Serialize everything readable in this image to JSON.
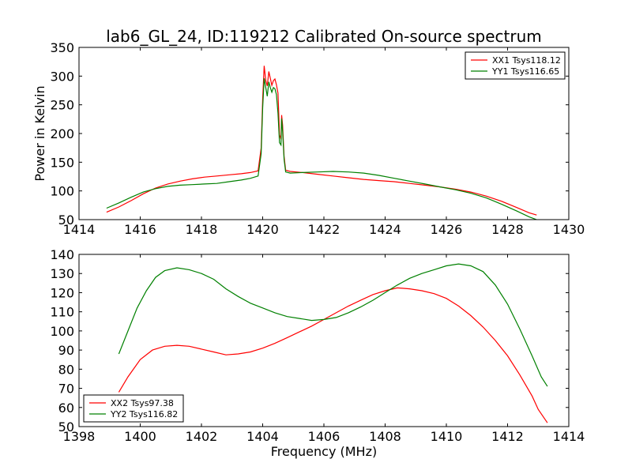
{
  "figure": {
    "title": "lab6_GL_24, ID:119212 Calibrated On-source spectrum"
  },
  "chart_data": [
    {
      "type": "line",
      "ylabel": "Power in Kelvin",
      "xlabel": "",
      "xlim": [
        1414,
        1430
      ],
      "ylim": [
        50,
        350
      ],
      "xticks": [
        "1414",
        "1416",
        "1418",
        "1420",
        "1422",
        "1424",
        "1426",
        "1428",
        "1430"
      ],
      "yticks": [
        "50",
        "100",
        "150",
        "200",
        "250",
        "300",
        "350"
      ],
      "legend_position": "top-right",
      "series": [
        {
          "name": "XX1 Tsys118.12",
          "color": "#ff0000",
          "points": [
            [
              1414.9,
              63
            ],
            [
              1415.3,
              72
            ],
            [
              1415.7,
              83
            ],
            [
              1416.1,
              95
            ],
            [
              1416.5,
              105
            ],
            [
              1416.9,
              112
            ],
            [
              1417.3,
              117
            ],
            [
              1417.7,
              121
            ],
            [
              1418.1,
              124
            ],
            [
              1418.5,
              126
            ],
            [
              1418.9,
              128
            ],
            [
              1419.3,
              130
            ],
            [
              1419.6,
              132
            ],
            [
              1419.85,
              135
            ],
            [
              1419.95,
              175
            ],
            [
              1420.0,
              260
            ],
            [
              1420.05,
              318
            ],
            [
              1420.1,
              292
            ],
            [
              1420.15,
              283
            ],
            [
              1420.2,
              308
            ],
            [
              1420.25,
              296
            ],
            [
              1420.3,
              284
            ],
            [
              1420.35,
              292
            ],
            [
              1420.4,
              295
            ],
            [
              1420.45,
              285
            ],
            [
              1420.5,
              270
            ],
            [
              1420.55,
              198
            ],
            [
              1420.6,
              190
            ],
            [
              1420.62,
              232
            ],
            [
              1420.65,
              215
            ],
            [
              1420.7,
              160
            ],
            [
              1420.75,
              136
            ],
            [
              1420.9,
              134
            ],
            [
              1421.3,
              132
            ],
            [
              1421.8,
              129
            ],
            [
              1422.3,
              126
            ],
            [
              1422.8,
              123
            ],
            [
              1423.3,
              120
            ],
            [
              1423.8,
              118
            ],
            [
              1424.3,
              116
            ],
            [
              1424.8,
              113
            ],
            [
              1425.3,
              110
            ],
            [
              1425.8,
              107
            ],
            [
              1426.3,
              103
            ],
            [
              1426.8,
              98
            ],
            [
              1427.3,
              91
            ],
            [
              1427.8,
              82
            ],
            [
              1428.3,
              71
            ],
            [
              1428.7,
              62
            ],
            [
              1428.95,
              58
            ]
          ]
        },
        {
          "name": "YY1 Tsys116.65",
          "color": "#008000",
          "points": [
            [
              1414.9,
              70
            ],
            [
              1415.3,
              79
            ],
            [
              1415.7,
              89
            ],
            [
              1416.1,
              98
            ],
            [
              1416.5,
              104
            ],
            [
              1416.9,
              108
            ],
            [
              1417.3,
              110
            ],
            [
              1417.7,
              111
            ],
            [
              1418.1,
              112
            ],
            [
              1418.5,
              113
            ],
            [
              1418.9,
              116
            ],
            [
              1419.3,
              119
            ],
            [
              1419.6,
              122
            ],
            [
              1419.85,
              126
            ],
            [
              1419.95,
              165
            ],
            [
              1420.0,
              245
            ],
            [
              1420.05,
              296
            ],
            [
              1420.1,
              280
            ],
            [
              1420.15,
              265
            ],
            [
              1420.2,
              290
            ],
            [
              1420.25,
              280
            ],
            [
              1420.3,
              272
            ],
            [
              1420.35,
              280
            ],
            [
              1420.4,
              278
            ],
            [
              1420.45,
              268
            ],
            [
              1420.5,
              235
            ],
            [
              1420.55,
              184
            ],
            [
              1420.6,
              180
            ],
            [
              1420.62,
              226
            ],
            [
              1420.65,
              205
            ],
            [
              1420.7,
              155
            ],
            [
              1420.75,
              133
            ],
            [
              1420.9,
              131
            ],
            [
              1421.3,
              132
            ],
            [
              1421.8,
              133
            ],
            [
              1422.3,
              134
            ],
            [
              1422.8,
              133
            ],
            [
              1423.3,
              131
            ],
            [
              1423.8,
              127
            ],
            [
              1424.3,
              122
            ],
            [
              1424.8,
              117
            ],
            [
              1425.3,
              112
            ],
            [
              1425.8,
              107
            ],
            [
              1426.3,
              102
            ],
            [
              1426.8,
              96
            ],
            [
              1427.3,
              88
            ],
            [
              1427.8,
              77
            ],
            [
              1428.3,
              65
            ],
            [
              1428.7,
              55
            ],
            [
              1428.95,
              50
            ]
          ]
        }
      ]
    },
    {
      "type": "line",
      "ylabel": "",
      "xlabel": "Frequency (MHz)",
      "xlim": [
        1398,
        1414
      ],
      "ylim": [
        50,
        140
      ],
      "xticks": [
        "1398",
        "1400",
        "1402",
        "1404",
        "1406",
        "1408",
        "1410",
        "1412",
        "1414"
      ],
      "yticks": [
        "50",
        "60",
        "70",
        "80",
        "90",
        "100",
        "110",
        "120",
        "130",
        "140"
      ],
      "legend_position": "bottom-left",
      "series": [
        {
          "name": "XX2 Tsys97.38",
          "color": "#ff0000",
          "points": [
            [
              1399.3,
              68
            ],
            [
              1399.6,
              76
            ],
            [
              1400.0,
              85
            ],
            [
              1400.4,
              90
            ],
            [
              1400.8,
              92
            ],
            [
              1401.2,
              92.5
            ],
            [
              1401.6,
              92
            ],
            [
              1402.0,
              90.5
            ],
            [
              1402.4,
              89
            ],
            [
              1402.8,
              87.5
            ],
            [
              1403.2,
              88
            ],
            [
              1403.6,
              89
            ],
            [
              1404.0,
              91
            ],
            [
              1404.4,
              93.5
            ],
            [
              1404.8,
              96.5
            ],
            [
              1405.2,
              99.5
            ],
            [
              1405.6,
              102.5
            ],
            [
              1406.0,
              106
            ],
            [
              1406.4,
              109.5
            ],
            [
              1406.8,
              113
            ],
            [
              1407.2,
              116
            ],
            [
              1407.6,
              119
            ],
            [
              1408.0,
              121
            ],
            [
              1408.4,
              122.5
            ],
            [
              1408.8,
              122
            ],
            [
              1409.2,
              121
            ],
            [
              1409.6,
              119.5
            ],
            [
              1410.0,
              117
            ],
            [
              1410.4,
              113
            ],
            [
              1410.8,
              108
            ],
            [
              1411.2,
              102
            ],
            [
              1411.6,
              95
            ],
            [
              1412.0,
              87
            ],
            [
              1412.4,
              77
            ],
            [
              1412.8,
              66
            ],
            [
              1413.0,
              59
            ],
            [
              1413.3,
              52
            ]
          ]
        },
        {
          "name": "YY2 Tsys116.82",
          "color": "#008000",
          "points": [
            [
              1399.3,
              88
            ],
            [
              1399.6,
              100
            ],
            [
              1399.9,
              112
            ],
            [
              1400.2,
              121
            ],
            [
              1400.5,
              128
            ],
            [
              1400.8,
              131.5
            ],
            [
              1401.2,
              133
            ],
            [
              1401.6,
              132
            ],
            [
              1402.0,
              130
            ],
            [
              1402.4,
              127
            ],
            [
              1402.8,
              122
            ],
            [
              1403.2,
              118
            ],
            [
              1403.6,
              114.5
            ],
            [
              1404.0,
              112
            ],
            [
              1404.4,
              109.5
            ],
            [
              1404.8,
              107.5
            ],
            [
              1405.2,
              106.5
            ],
            [
              1405.6,
              105.5
            ],
            [
              1406.0,
              106
            ],
            [
              1406.4,
              107
            ],
            [
              1406.8,
              109.5
            ],
            [
              1407.2,
              112.5
            ],
            [
              1407.6,
              116
            ],
            [
              1408.0,
              120
            ],
            [
              1408.4,
              124
            ],
            [
              1408.8,
              127.5
            ],
            [
              1409.2,
              130
            ],
            [
              1409.6,
              132
            ],
            [
              1410.0,
              134
            ],
            [
              1410.4,
              135
            ],
            [
              1410.8,
              134
            ],
            [
              1411.2,
              131
            ],
            [
              1411.6,
              124
            ],
            [
              1412.0,
              114
            ],
            [
              1412.4,
              101
            ],
            [
              1412.8,
              87
            ],
            [
              1413.1,
              76
            ],
            [
              1413.3,
              71
            ]
          ]
        }
      ]
    }
  ]
}
